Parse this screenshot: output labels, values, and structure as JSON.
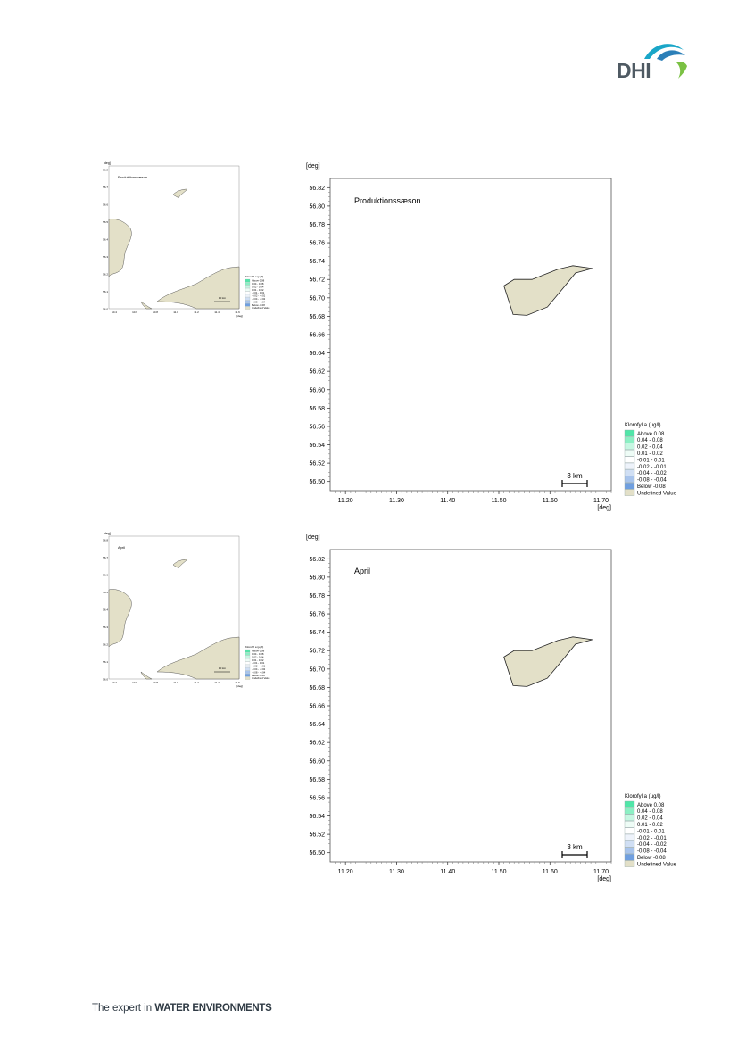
{
  "logo": {
    "text": "DHI",
    "colors": [
      "#1aa6c8",
      "#2b7fb8",
      "#7ac143"
    ]
  },
  "footer": {
    "prefix": "The expert in",
    "emphasis": "WATER ENVIRONMENTS"
  },
  "colors": {
    "land": "#e3e0c8",
    "land_stroke": "#222222",
    "legend_swatches": [
      "#50e6a8",
      "#8cf0c4",
      "#c6f7e2",
      "#eefcf6",
      "#ffffff",
      "#eef3fb",
      "#d0dff4",
      "#a8c4ec",
      "#6f9fe0",
      "#e3e0c8"
    ]
  },
  "charts": [
    {
      "panel_title": "Produktionssæson",
      "y_unit": "[deg]",
      "x_unit": "[deg]",
      "y_ticks": [
        "56.82",
        "56.80",
        "56.78",
        "56.76",
        "56.74",
        "56.72",
        "56.70",
        "56.68",
        "56.66",
        "56.64",
        "56.62",
        "56.60",
        "56.58",
        "56.56",
        "56.54",
        "56.52",
        "56.50"
      ],
      "x_ticks": [
        "11.20",
        "11.30",
        "11.40",
        "11.50",
        "11.60",
        "11.70"
      ],
      "scale_bar": "3 km",
      "legend_title": "Klorofyl a (µg/l)",
      "legend_items": [
        "Above  0.08",
        "0.04 -  0.08",
        "0.02 -  0.04",
        "0.01 -  0.02",
        "-0.01 -  0.01",
        "-0.02 - -0.01",
        "-0.04 - -0.02",
        "-0.08 - -0.04",
        "Below -0.08",
        "Undefined Value"
      ]
    },
    {
      "panel_title": "April",
      "y_unit": "[deg]",
      "x_unit": "[deg]",
      "y_ticks": [
        "56.82",
        "56.80",
        "56.78",
        "56.76",
        "56.74",
        "56.72",
        "56.70",
        "56.68",
        "56.66",
        "56.64",
        "56.62",
        "56.60",
        "56.58",
        "56.56",
        "56.54",
        "56.52",
        "56.50"
      ],
      "x_ticks": [
        "11.20",
        "11.30",
        "11.40",
        "11.50",
        "11.60",
        "11.70"
      ],
      "scale_bar": "3 km",
      "legend_title": "Klorofyl a (µg/l)",
      "legend_items": [
        "Above  0.08",
        "0.04 -  0.08",
        "0.02 -  0.04",
        "0.01 -  0.02",
        "-0.01 -  0.01",
        "-0.02 - -0.01",
        "-0.04 - -0.02",
        "-0.08 - -0.04",
        "Below -0.08",
        "Undefined Value"
      ]
    }
  ],
  "overviews": [
    {
      "panel_title": "Produktionssæson",
      "y_unit": "[deg]",
      "x_unit": "[deg]",
      "y_ticks": [
        "56.8",
        "56.7",
        "56.6",
        "56.5",
        "56.4",
        "56.3",
        "56.2",
        "56.1",
        "56.0"
      ],
      "x_ticks": [
        "10.4",
        "10.6",
        "10.8",
        "11.0",
        "11.2",
        "11.4",
        "11.6"
      ],
      "scale_bar": "10 km",
      "legend_title": "Klorofyl a (µg/l)",
      "legend_items": [
        "Above  0.08",
        "0.04 -  0.08",
        "0.02 -  0.04",
        "0.01 -  0.02",
        "-0.01 -  0.01",
        "-0.02 - -0.01",
        "-0.04 - -0.02",
        "-0.08 - -0.04",
        "Below -0.08",
        "Undefined Value"
      ]
    },
    {
      "panel_title": "April",
      "y_unit": "[deg]",
      "x_unit": "[deg]",
      "y_ticks": [
        "56.8",
        "56.7",
        "56.6",
        "56.5",
        "56.4",
        "56.3",
        "56.2",
        "56.1",
        "56.0"
      ],
      "x_ticks": [
        "10.4",
        "10.6",
        "10.8",
        "11.0",
        "11.2",
        "11.4",
        "11.6"
      ],
      "scale_bar": "10 km",
      "legend_title": "Klorofyl a (µg/l)",
      "legend_items": [
        "Above  0.08",
        "0.04 -  0.08",
        "0.02 -  0.04",
        "0.01 -  0.02",
        "-0.01 -  0.01",
        "-0.02 - -0.01",
        "-0.04 - -0.02",
        "-0.08 - -0.04",
        "Below -0.08",
        "Undefined Value"
      ]
    }
  ],
  "chart_data": [
    {
      "type": "heatmap",
      "title": "Produktionssæson",
      "xlabel": "[deg]",
      "ylabel": "[deg]",
      "xlim": [
        11.17,
        11.72
      ],
      "ylim": [
        56.49,
        56.83
      ],
      "island_outline_lonlat": [
        [
          11.51,
          56.713
        ],
        [
          11.53,
          56.72
        ],
        [
          11.565,
          56.72
        ],
        [
          11.615,
          56.731
        ],
        [
          11.645,
          56.735
        ],
        [
          11.683,
          56.732
        ],
        [
          11.65,
          56.727
        ],
        [
          11.625,
          56.71
        ],
        [
          11.595,
          56.69
        ],
        [
          11.555,
          56.681
        ],
        [
          11.528,
          56.682
        ]
      ],
      "legend_title": "Klorofyl a (µg/l)",
      "legend": [
        "Above  0.08",
        "0.04 -  0.08",
        "0.02 -  0.04",
        "0.01 -  0.02",
        "-0.01 -  0.01",
        "-0.02 - -0.01",
        "-0.04 - -0.02",
        "-0.08 - -0.04",
        "Below -0.08",
        "Undefined Value"
      ],
      "grid": false,
      "legend_position": "right"
    },
    {
      "type": "heatmap",
      "title": "April",
      "xlabel": "[deg]",
      "ylabel": "[deg]",
      "xlim": [
        11.17,
        11.72
      ],
      "ylim": [
        56.49,
        56.83
      ],
      "island_outline_lonlat": [
        [
          11.51,
          56.713
        ],
        [
          11.53,
          56.72
        ],
        [
          11.565,
          56.72
        ],
        [
          11.615,
          56.731
        ],
        [
          11.645,
          56.735
        ],
        [
          11.683,
          56.732
        ],
        [
          11.65,
          56.727
        ],
        [
          11.625,
          56.71
        ],
        [
          11.595,
          56.69
        ],
        [
          11.555,
          56.681
        ],
        [
          11.528,
          56.682
        ]
      ],
      "legend_title": "Klorofyl a (µg/l)",
      "legend": [
        "Above  0.08",
        "0.04 -  0.08",
        "0.02 -  0.04",
        "0.01 -  0.02",
        "-0.01 -  0.01",
        "-0.02 - -0.01",
        "-0.04 - -0.02",
        "-0.08 - -0.04",
        "Below -0.08",
        "Undefined Value"
      ],
      "grid": false,
      "legend_position": "right"
    }
  ]
}
